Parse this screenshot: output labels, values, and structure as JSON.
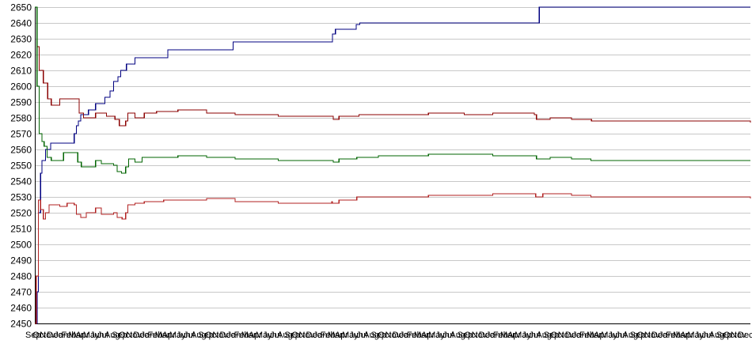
{
  "chart_data": {
    "type": "line",
    "title": "",
    "xlabel": "",
    "ylabel": "",
    "ylim": [
      2450,
      2650
    ],
    "yticks": [
      2450,
      2460,
      2470,
      2480,
      2490,
      2500,
      2510,
      2520,
      2530,
      2540,
      2550,
      2560,
      2570,
      2580,
      2590,
      2600,
      2610,
      2620,
      2630,
      2640,
      2650
    ],
    "xlim": [
      0,
      100
    ],
    "x_tick_labels": [
      "Sep",
      "Oct",
      "Nov",
      "Dec",
      "Jan",
      "Feb",
      "Mar",
      "Apr",
      "May",
      "Jun",
      "Jul",
      "Aug",
      "Sep",
      "Oct",
      "Nov",
      "Dec",
      "Jan",
      "Feb",
      "Mar",
      "Apr",
      "May",
      "Jun",
      "Jul",
      "Aug",
      "Sep",
      "Oct",
      "Nov",
      "Dec",
      "Jan",
      "Feb",
      "Mar",
      "Apr",
      "May",
      "Jun",
      "Jul",
      "Aug",
      "Sep",
      "Oct",
      "Nov",
      "Dec",
      "Jan",
      "Feb",
      "Mar",
      "Apr",
      "May",
      "Jun",
      "Jul",
      "Aug",
      "Sep",
      "Oct",
      "Nov",
      "Dec",
      "Jan",
      "Feb",
      "Mar",
      "Apr",
      "May",
      "Jun",
      "Jul",
      "Aug",
      "Sep",
      "Oct",
      "Nov",
      "Dec",
      "Jan",
      "Feb",
      "Mar",
      "Apr",
      "May",
      "Jun",
      "Jul",
      "Aug",
      "Sep",
      "Oct",
      "Nov",
      "Dec",
      "Jan",
      "Feb",
      "Mar",
      "Apr",
      "May",
      "Jun",
      "Jul",
      "Aug",
      "Sep",
      "Oct",
      "Nov",
      "Dec",
      "Jan",
      "Feb",
      "Mar",
      "Apr",
      "May",
      "Jun",
      "Jul",
      "Aug",
      "Sep",
      "Oct",
      "Nov",
      "Dec"
    ],
    "grid": true,
    "legend": "none",
    "series": [
      {
        "color": "#000080",
        "step": true,
        "points": [
          [
            0,
            2450
          ],
          [
            0.3,
            2470
          ],
          [
            0.5,
            2520
          ],
          [
            0.8,
            2545
          ],
          [
            1,
            2553
          ],
          [
            1.5,
            2560
          ],
          [
            2.2,
            2564
          ],
          [
            5.5,
            2570
          ],
          [
            5.8,
            2575
          ],
          [
            6.1,
            2578
          ],
          [
            6.4,
            2582
          ],
          [
            7.5,
            2585
          ],
          [
            8.5,
            2589
          ],
          [
            9.8,
            2593
          ],
          [
            10.5,
            2597
          ],
          [
            11,
            2603
          ],
          [
            11.6,
            2606
          ],
          [
            12,
            2610
          ],
          [
            12.8,
            2614
          ],
          [
            14,
            2618
          ],
          [
            18.6,
            2623
          ],
          [
            27.7,
            2628
          ],
          [
            41.2,
            2628
          ],
          [
            41.6,
            2633
          ],
          [
            42,
            2636
          ],
          [
            44.9,
            2639
          ],
          [
            45.4,
            2640
          ],
          [
            69.7,
            2640
          ],
          [
            70.5,
            2650
          ],
          [
            100,
            2650
          ]
        ]
      },
      {
        "color": "#8b0000",
        "step": true,
        "points": [
          [
            0,
            2650
          ],
          [
            0.3,
            2625
          ],
          [
            0.6,
            2610
          ],
          [
            1.2,
            2602
          ],
          [
            1.8,
            2592
          ],
          [
            2.3,
            2588
          ],
          [
            3.5,
            2592
          ],
          [
            4.5,
            2592
          ],
          [
            6,
            2592
          ],
          [
            6.2,
            2583
          ],
          [
            6.8,
            2580
          ],
          [
            8.5,
            2583
          ],
          [
            10,
            2581
          ],
          [
            11.2,
            2579
          ],
          [
            11.8,
            2575
          ],
          [
            12.7,
            2578
          ],
          [
            13,
            2583
          ],
          [
            14,
            2580
          ],
          [
            15.3,
            2583
          ],
          [
            17,
            2584
          ],
          [
            20,
            2585
          ],
          [
            24,
            2583
          ],
          [
            28,
            2582
          ],
          [
            34,
            2581
          ],
          [
            41.5,
            2581
          ],
          [
            41.7,
            2579
          ],
          [
            42.5,
            2581
          ],
          [
            45.3,
            2582
          ],
          [
            53,
            2582
          ],
          [
            55,
            2583
          ],
          [
            60,
            2582
          ],
          [
            64,
            2583
          ],
          [
            69.8,
            2582
          ],
          [
            70.1,
            2579
          ],
          [
            72,
            2580
          ],
          [
            75,
            2579
          ],
          [
            77.8,
            2578
          ],
          [
            100,
            2577
          ]
        ]
      },
      {
        "color": "#006400",
        "step": true,
        "points": [
          [
            0,
            2650
          ],
          [
            0.3,
            2600
          ],
          [
            0.6,
            2570
          ],
          [
            1,
            2565
          ],
          [
            1.3,
            2562
          ],
          [
            1.7,
            2555
          ],
          [
            2.3,
            2553
          ],
          [
            4,
            2558
          ],
          [
            5.5,
            2558
          ],
          [
            6,
            2552
          ],
          [
            6.5,
            2549
          ],
          [
            8.5,
            2553
          ],
          [
            9.3,
            2551
          ],
          [
            11,
            2550
          ],
          [
            11.5,
            2546
          ],
          [
            12.1,
            2545
          ],
          [
            12.7,
            2549
          ],
          [
            13.1,
            2554
          ],
          [
            14,
            2552
          ],
          [
            15,
            2555
          ],
          [
            18,
            2555
          ],
          [
            20,
            2556
          ],
          [
            24,
            2555
          ],
          [
            28,
            2554
          ],
          [
            34,
            2553
          ],
          [
            41.5,
            2553
          ],
          [
            41.7,
            2552
          ],
          [
            42.5,
            2554
          ],
          [
            45,
            2555
          ],
          [
            48,
            2556
          ],
          [
            55,
            2557
          ],
          [
            64,
            2556
          ],
          [
            69.8,
            2556
          ],
          [
            70.1,
            2554
          ],
          [
            72,
            2555
          ],
          [
            75,
            2554
          ],
          [
            77.7,
            2553
          ],
          [
            100,
            2553
          ]
        ]
      },
      {
        "color": "#b22222",
        "step": true,
        "points": [
          [
            0,
            2450
          ],
          [
            0.2,
            2480
          ],
          [
            0.5,
            2528
          ],
          [
            0.8,
            2522
          ],
          [
            1.2,
            2516
          ],
          [
            1.5,
            2520
          ],
          [
            2,
            2525
          ],
          [
            3.5,
            2524
          ],
          [
            4.5,
            2526
          ],
          [
            5.5,
            2525
          ],
          [
            5.8,
            2519
          ],
          [
            6.4,
            2517
          ],
          [
            7.2,
            2520
          ],
          [
            8.5,
            2523
          ],
          [
            9.3,
            2519
          ],
          [
            11,
            2520
          ],
          [
            11.5,
            2517
          ],
          [
            12.2,
            2516
          ],
          [
            12.7,
            2520
          ],
          [
            13,
            2525
          ],
          [
            14,
            2526
          ],
          [
            15.3,
            2527
          ],
          [
            18,
            2528
          ],
          [
            24,
            2529
          ],
          [
            28,
            2527
          ],
          [
            34,
            2526
          ],
          [
            41.5,
            2527
          ],
          [
            41.6,
            2526
          ],
          [
            42.5,
            2528
          ],
          [
            45,
            2530
          ],
          [
            55,
            2531
          ],
          [
            60,
            2531
          ],
          [
            64,
            2532
          ],
          [
            69.8,
            2532
          ],
          [
            70,
            2530
          ],
          [
            71,
            2532
          ],
          [
            75,
            2531
          ],
          [
            77.7,
            2530
          ],
          [
            100,
            2529
          ]
        ]
      }
    ]
  }
}
